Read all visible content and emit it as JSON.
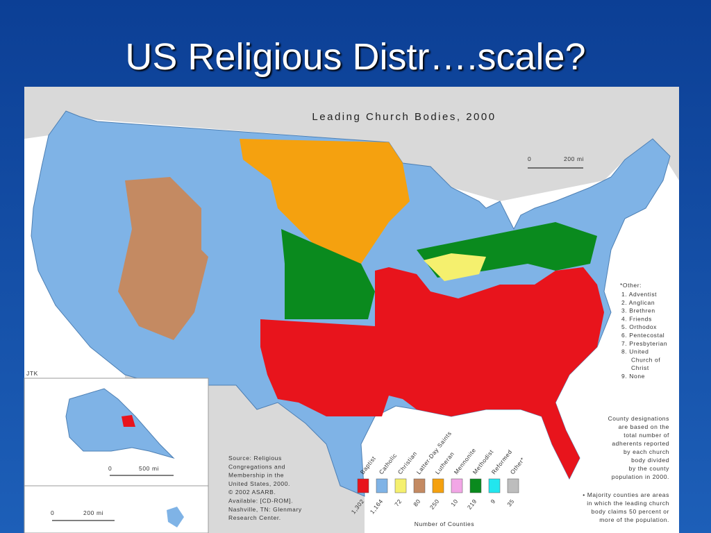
{
  "slide": {
    "title": "US Religious Distr….scale?"
  },
  "map": {
    "title": "Leading Church Bodies, 2000",
    "scale_main": {
      "zero": "0",
      "label": "200 mi"
    },
    "scale_alaska": {
      "zero": "0",
      "label": "500 mi"
    },
    "scale_hawaii": {
      "zero": "0",
      "label": "200 mi"
    },
    "credit": "JTK",
    "legend": {
      "items": [
        {
          "name": "Baptist",
          "color": "#e8141c",
          "count": "1,302"
        },
        {
          "name": "Catholic",
          "color": "#7fb3e6",
          "count": "1,164"
        },
        {
          "name": "Christian",
          "color": "#f5f06e",
          "count": "72"
        },
        {
          "name": "Latter-Day Saints",
          "color": "#c48a62",
          "count": "80"
        },
        {
          "name": "Lutheran",
          "color": "#f5a10f",
          "count": "250"
        },
        {
          "name": "Mennonite",
          "color": "#f2a6e6",
          "count": "10"
        },
        {
          "name": "Methodist",
          "color": "#0a8a1e",
          "count": "219"
        },
        {
          "name": "Reformed",
          "color": "#22e6ee",
          "count": "9"
        },
        {
          "name": "Other*",
          "color": "#bdbdbd",
          "count": "35"
        }
      ],
      "caption": "Number of Counties"
    },
    "other": {
      "heading": "*Other:",
      "lines": [
        "1. Adventist",
        "2. Anglican",
        "3. Brethren",
        "4. Friends",
        "5. Orthodox",
        "6. Pentecostal",
        "7. Presbyterian",
        "8. United",
        "Church of",
        "Christ",
        "9. None"
      ]
    },
    "note": [
      "County designations",
      "are based on the",
      "total number of",
      "adherents reported",
      "by each church",
      "body divided",
      "by the county",
      "population in 2000."
    ],
    "majority_note": [
      "• Majority counties are areas",
      "in which the leading church",
      "body claims 50 percent or",
      "more of the population."
    ],
    "source": [
      "Source: Religious",
      "Congregations and",
      "Membership in the",
      "United States, 2000.",
      "© 2002 ASARB.",
      "Available: [CD-ROM].",
      "Nashville, TN: Glenmary",
      "Research Center."
    ]
  }
}
